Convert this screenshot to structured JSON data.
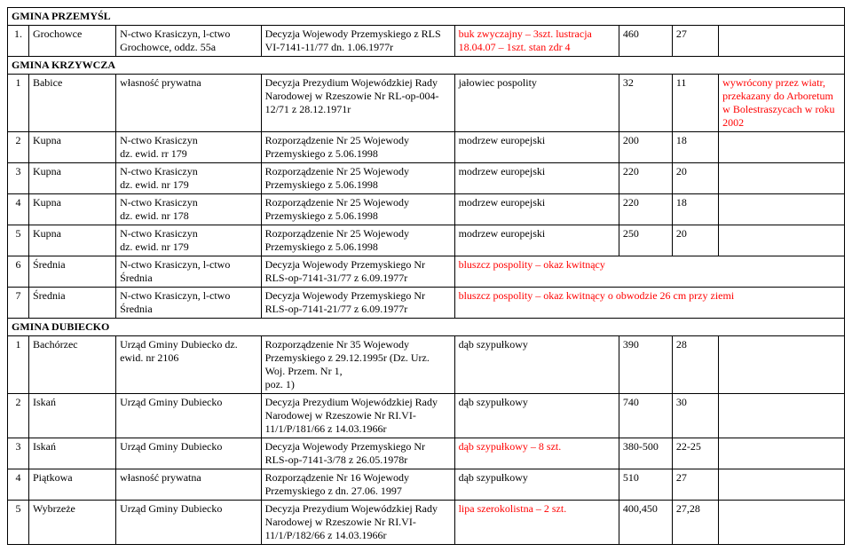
{
  "sections": [
    {
      "header": "GMINA  PRZEMYŚL",
      "rows": [
        {
          "num": "1.",
          "place": "Grochowce",
          "owner_parts": [
            {
              "t": "N-ctwo Krasiczyn, l-ctwo Grochowce, oddz. 55a"
            }
          ],
          "decision_parts": [
            {
              "t": "Decyzja Wojewody Przemyskiego z RLS VI-7141-11/77 dn. 1.06.1977r"
            }
          ],
          "species_parts": [
            {
              "t": "buk zwyczajny – 3szt.",
              "red": true
            },
            {
              "t": "lustracja 18.04.07 – 1szt. stan zdr 4",
              "red": true
            }
          ],
          "dim": "460",
          "age": "27",
          "notes": ""
        }
      ]
    },
    {
      "header": "GMINA  KRZYWCZA",
      "rows": [
        {
          "num": "1",
          "place": "Babice",
          "owner_parts": [
            {
              "t": "własność prywatna"
            }
          ],
          "decision_parts": [
            {
              "t": "Decyzja Prezydium Wojewódzkiej Rady Narodowej w Rzeszowie Nr RL-op-004-12/71 z 28.12.1971r"
            }
          ],
          "species_parts": [
            {
              "t": "jałowiec pospolity"
            }
          ],
          "dim": "32",
          "age": "11",
          "notes": "wywrócony przez wiatr, przekazany do Arboretum w Bolestraszycach w roku 2002",
          "notes_red": true
        },
        {
          "num": "2",
          "place": "Kupna",
          "owner_parts": [
            {
              "t": "N-ctwo Krasiczyn\ndz. ewid. rr 179"
            }
          ],
          "decision_parts": [
            {
              "t": "Rozporządzenie Nr 25 Wojewody Przemyskiego z 5.06.1998"
            }
          ],
          "species_parts": [
            {
              "t": "modrzew europejski"
            }
          ],
          "dim": "200",
          "age": "18",
          "notes": ""
        },
        {
          "num": "3",
          "place": "Kupna",
          "owner_parts": [
            {
              "t": "N-ctwo Krasiczyn\ndz. ewid. nr 179"
            }
          ],
          "decision_parts": [
            {
              "t": "Rozporządzenie Nr 25 Wojewody Przemyskiego z 5.06.1998"
            }
          ],
          "species_parts": [
            {
              "t": "modrzew europejski"
            }
          ],
          "dim": "220",
          "age": "20",
          "notes": ""
        },
        {
          "num": "4",
          "place": "Kupna",
          "owner_parts": [
            {
              "t": "N-ctwo Krasiczyn\ndz. ewid. nr 178"
            }
          ],
          "decision_parts": [
            {
              "t": "Rozporządzenie Nr 25 Wojewody Przemyskiego z 5.06.1998"
            }
          ],
          "species_parts": [
            {
              "t": "modrzew europejski"
            }
          ],
          "dim": "220",
          "age": "18",
          "notes": ""
        },
        {
          "num": "5",
          "place": "Kupna",
          "owner_parts": [
            {
              "t": "N-ctwo Krasiczyn\ndz. ewid. nr 179"
            }
          ],
          "decision_parts": [
            {
              "t": "Rozporządzenie Nr 25 Wojewody Przemyskiego z 5.06.1998"
            }
          ],
          "species_parts": [
            {
              "t": "modrzew europejski"
            }
          ],
          "dim": "250",
          "age": "20",
          "notes": ""
        },
        {
          "num": "6",
          "place": "Średnia",
          "owner_parts": [
            {
              "t": "N-ctwo Krasiczyn, l-ctwo Średnia"
            }
          ],
          "decision_parts": [
            {
              "t": "Decyzja Wojewody Przemyskiego Nr RLS-op-7141-31/77 z 6.09.1977r"
            }
          ],
          "species_merged": "bluszcz pospolity – okaz kwitnący",
          "species_red": true,
          "merge": true
        },
        {
          "num": "7",
          "place": "Średnia",
          "owner_parts": [
            {
              "t": "N-ctwo Krasiczyn, l-ctwo Średnia"
            }
          ],
          "decision_parts": [
            {
              "t": "Decyzja Wojewody Przemyskiego Nr RLS-op-7141-21/77 z 6.09.1977r"
            }
          ],
          "species_merged": "bluszcz pospolity – okaz kwitnący o obwodzie 26 cm przy ziemi",
          "species_red": true,
          "merge": true
        }
      ]
    },
    {
      "header": "GMINA  DUBIECKO",
      "rows": [
        {
          "num": "1",
          "place": "Bachórzec",
          "owner_parts": [
            {
              "t": "Urząd Gminy Dubiecko dz. ewid. nr 2106"
            }
          ],
          "decision_parts": [
            {
              "t": "Rozporządzenie Nr 35 Wojewody Przemyskiego z 29.12.1995r (Dz. Urz. Woj. Przem. Nr 1,\n poz. 1)"
            }
          ],
          "species_parts": [
            {
              "t": "dąb szypułkowy"
            }
          ],
          "dim": "390",
          "age": "28",
          "notes": ""
        },
        {
          "num": "2",
          "place": "Iskań",
          "owner_parts": [
            {
              "t": "Urząd Gminy Dubiecko"
            }
          ],
          "decision_parts": [
            {
              "t": "Decyzja Prezydium Wojewódzkiej Rady Narodowej w Rzeszowie Nr RI.VI-11/1/P/181/66 z 14.03.1966r"
            }
          ],
          "species_parts": [
            {
              "t": "dąb szypułkowy"
            }
          ],
          "dim": "740",
          "age": "30",
          "notes": ""
        },
        {
          "num": "3",
          "place": "Iskań",
          "owner_parts": [
            {
              "t": "Urząd Gminy Dubiecko"
            }
          ],
          "decision_parts": [
            {
              "t": "Decyzja Wojewody Przemyskiego Nr RLS-op-7141-3/78 z 26.05.1978r"
            }
          ],
          "species_parts": [
            {
              "t": "dąb szypułkowy – 8 szt.",
              "red": true
            }
          ],
          "dim": "380-500",
          "age": "22-25",
          "notes": ""
        },
        {
          "num": "4",
          "place": "Piątkowa",
          "owner_parts": [
            {
              "t": "własność prywatna"
            }
          ],
          "decision_parts": [
            {
              "t": "Rozporządzenie Nr 16 Wojewody Przemyskiego z dn. 27.06. 1997"
            }
          ],
          "species_parts": [
            {
              "t": "dąb szypułkowy"
            }
          ],
          "dim": "510",
          "age": "27",
          "notes": ""
        },
        {
          "num": "5",
          "place": "Wybrzeże",
          "owner_parts": [
            {
              "t": "Urząd Gminy Dubiecko"
            }
          ],
          "decision_parts": [
            {
              "t": "Decyzja Prezydium Wojewódzkiej Rady Narodowej w Rzeszowie Nr RI.VI-11/1/P/182/66 z 14.03.1966r"
            }
          ],
          "species_parts": [
            {
              "t": "lipa szerokolistna – 2 szt.",
              "red": true
            }
          ],
          "dim": "400,450",
          "age": "27,28",
          "notes": ""
        }
      ]
    }
  ]
}
